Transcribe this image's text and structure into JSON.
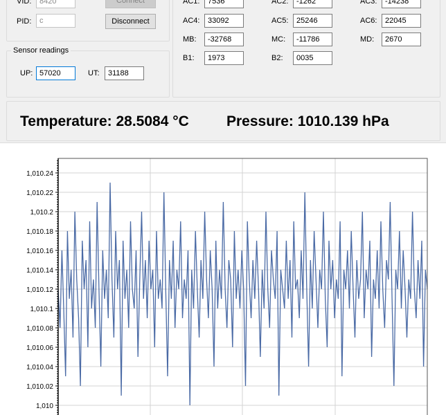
{
  "device": {
    "vid_label": "VID:",
    "vid_value": "8420",
    "pid_label": "PID:",
    "pid_value": "c",
    "connect_label": "Connect",
    "disconnect_label": "Disconnect"
  },
  "sensor": {
    "title": "Sensor readings",
    "up_label": "UP:",
    "up_value": "57020",
    "ut_label": "UT:",
    "ut_value": "31188"
  },
  "calibration": {
    "rows": [
      [
        {
          "label": "AC1:",
          "value": "7536"
        },
        {
          "label": "AC2:",
          "value": "-1262"
        },
        {
          "label": "AC3:",
          "value": "-14238"
        }
      ],
      [
        {
          "label": "AC4:",
          "value": "33092"
        },
        {
          "label": "AC5:",
          "value": "25246"
        },
        {
          "label": "AC6:",
          "value": "22045"
        }
      ],
      [
        {
          "label": "MB:",
          "value": "-32768"
        },
        {
          "label": "MC:",
          "value": "-11786"
        },
        {
          "label": "MD:",
          "value": "2670"
        }
      ],
      [
        {
          "label": "B1:",
          "value": "1973"
        },
        {
          "label": "B2:",
          "value": "0035"
        }
      ]
    ]
  },
  "readout": {
    "temperature": "Temperature: 28.5084 °C",
    "pressure": "Pressure: 1010.139 hPa"
  },
  "colors": {
    "series": "#4a6aa5",
    "grid": "#d3d3d3",
    "focus": "#0078d7"
  },
  "chart_data": {
    "type": "line",
    "ylim": [
      1009.99,
      1010.255
    ],
    "y_ticks": [
      "1,010.24",
      "1,010.22",
      "1,010.2",
      "1,010.18",
      "1,010.16",
      "1,010.14",
      "1,010.12",
      "1,010.1",
      "1,010.08",
      "1,010.06",
      "1,010.04",
      "1,010.02",
      "1,010"
    ],
    "y_tick_values": [
      1010.24,
      1010.22,
      1010.2,
      1010.18,
      1010.16,
      1010.14,
      1010.12,
      1010.1,
      1010.08,
      1010.06,
      1010.04,
      1010.02,
      1010.0
    ],
    "grid": true,
    "series": [
      {
        "values": [
          1010.12,
          1010.08,
          1010.16,
          1010.1,
          1010.03,
          1010.18,
          1010.11,
          1010.14,
          1010.07,
          1010.2,
          1010.13,
          1010.09,
          1010.02,
          1010.17,
          1010.12,
          1010.15,
          1010.06,
          1010.19,
          1010.1,
          1010.13,
          1010.08,
          1010.21,
          1010.12,
          1010.04,
          1010.16,
          1010.11,
          1010.14,
          1010.09,
          1010.23,
          1010.13,
          1010.07,
          1010.18,
          1010.12,
          1010.15,
          1010.01,
          1010.17,
          1010.11,
          1010.14,
          1010.08,
          1010.19,
          1010.12,
          1010.1,
          1010.16,
          1010.05,
          1010.13,
          1010.2,
          1010.11,
          1010.15,
          1010.09,
          1010.17,
          1010.12,
          1010.14,
          1010.06,
          1010.18,
          1010.11,
          1010.13,
          1010.1,
          1010.22,
          1010.12,
          1010.03,
          1010.15,
          1010.11,
          1010.17,
          1010.08,
          1010.14,
          1010.12,
          1010.19,
          1010.09,
          1010.13,
          1010.11,
          1010.16,
          1010.0,
          1010.14,
          1010.1,
          1010.18,
          1010.12,
          1010.07,
          1010.15,
          1010.11,
          1010.2,
          1010.13,
          1010.09,
          1010.16,
          1010.12,
          1010.04,
          1010.17,
          1010.1,
          1010.14,
          1010.11,
          1010.21,
          1010.12,
          1010.08,
          1010.15,
          1010.13,
          1010.06,
          1010.18,
          1010.11,
          1010.14,
          1010.1,
          1010.16,
          1010.12,
          1010.02,
          1010.19,
          1010.13,
          1010.09,
          1010.15,
          1010.11,
          1010.17,
          1010.12,
          1010.05,
          1010.14,
          1010.1,
          1010.2,
          1010.12,
          1010.08,
          1010.16,
          1010.13,
          1010.11,
          1010.18,
          1010.01,
          1010.14,
          1010.12,
          1010.1,
          1010.17,
          1010.11,
          1010.15,
          1010.07,
          1010.19,
          1010.12,
          1010.13,
          1010.09,
          1010.16,
          1010.11,
          1010.22,
          1010.12,
          1010.04,
          1010.15,
          1010.1,
          1010.18,
          1010.13,
          1010.08,
          1010.14,
          1010.12,
          1010.2,
          1010.11,
          1010.06,
          1010.17,
          1010.12,
          1010.15,
          1010.09,
          1010.13,
          1010.11,
          1010.19,
          1010.03,
          1010.14,
          1010.12,
          1010.16,
          1010.1,
          1010.18,
          1010.12,
          1010.07,
          1010.15,
          1010.11,
          1010.13,
          1010.2,
          1010.09,
          1010.14,
          1010.12,
          1010.17,
          1010.05,
          1010.13,
          1010.11,
          1010.16,
          1010.1,
          1010.19,
          1010.12,
          1010.08,
          1010.15,
          1010.13,
          1010.21,
          1010.11,
          1010.02,
          1010.14,
          1010.12,
          1010.18,
          1010.1,
          1010.16,
          1010.12,
          1010.07,
          1010.13,
          1010.11,
          1010.2,
          1010.12,
          1010.09,
          1010.15,
          1010.11,
          1010.17,
          1010.04,
          1010.14,
          1010.12
        ]
      }
    ]
  }
}
